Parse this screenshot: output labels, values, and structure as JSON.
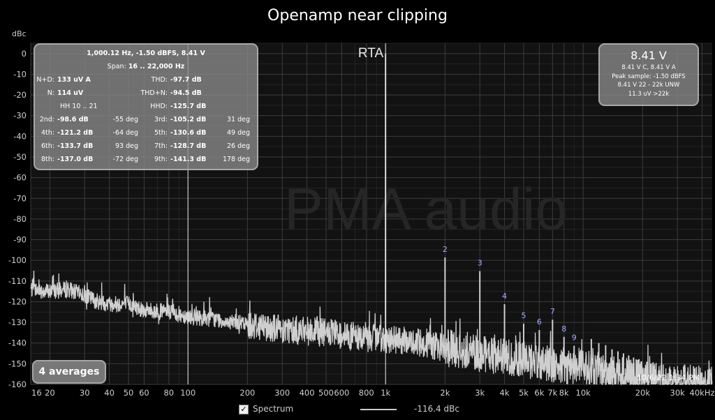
{
  "chart_data": {
    "type": "line",
    "title": "Openamp near clipping",
    "ylabel": "dBc",
    "xlabel": "",
    "x_scale": "log",
    "xlim": [
      16,
      45000
    ],
    "ylim": [
      -160,
      5
    ],
    "grid": true,
    "x_ticks": [
      16,
      20,
      30,
      40,
      50,
      60,
      80,
      100,
      200,
      300,
      400,
      500,
      600,
      800,
      1000,
      2000,
      3000,
      4000,
      5000,
      6000,
      7000,
      8000,
      10000,
      20000,
      30000,
      40000
    ],
    "x_tick_labels": [
      "16",
      "20",
      "30",
      "40",
      "50",
      "60",
      "80",
      "100",
      "200",
      "300",
      "400",
      "500",
      "600",
      "800",
      "1k",
      "2k",
      "3k",
      "4k",
      "5k",
      "6k",
      "7k",
      "8k",
      "10k",
      "20k",
      "30k",
      "40kHz"
    ],
    "y_ticks": [
      0,
      -10,
      -20,
      -30,
      -40,
      -50,
      -60,
      -70,
      -80,
      -90,
      -100,
      -110,
      -120,
      -130,
      -140,
      -150,
      -160
    ],
    "y_tick_labels": [
      "0",
      "-10",
      "-20",
      "-30",
      "-40",
      "-50",
      "-60",
      "-70",
      "-80",
      "-90",
      "-100",
      "-110",
      "-120",
      "-130",
      "-140",
      "-150",
      "-160"
    ],
    "series": [
      {
        "name": "Spectrum",
        "noise_floor": {
          "x": [
            16,
            20,
            25,
            30,
            35,
            40,
            50,
            60,
            80,
            100,
            150,
            200,
            300,
            500,
            700,
            900,
            1000,
            1500,
            2000,
            3000,
            5000,
            8000,
            10000,
            15000,
            20000,
            40000
          ],
          "y": [
            -114,
            -115,
            -114,
            -117,
            -120,
            -121,
            -121,
            -124,
            -125,
            -127,
            -129,
            -131,
            -133,
            -135,
            -137,
            -138,
            -138,
            -140,
            -142,
            -145,
            -148,
            -151,
            -152,
            -155,
            -157,
            -160
          ]
        },
        "peaks": {
          "x": [
            1000,
            2000,
            3000,
            4000,
            5000,
            6000,
            7000,
            8000,
            9000,
            11000,
            12000,
            13000,
            14000,
            15000,
            16000,
            17000,
            18000,
            19000,
            21000,
            22000
          ],
          "y": [
            0,
            -98.6,
            -105.2,
            -121.2,
            -130.6,
            -133.7,
            -128.7,
            -137.0,
            -141.3,
            -138,
            -140,
            -141,
            -143,
            -144,
            -145,
            -146,
            -147,
            -148,
            -149,
            -150
          ]
        }
      }
    ],
    "harmonic_labels": [
      {
        "label": "2",
        "x": 2000,
        "y": -98.6
      },
      {
        "label": "3",
        "x": 3000,
        "y": -105.2
      },
      {
        "label": "4",
        "x": 4000,
        "y": -121.2
      },
      {
        "label": "5",
        "x": 5000,
        "y": -130.6
      },
      {
        "label": "6",
        "x": 6000,
        "y": -133.7
      },
      {
        "label": "7",
        "x": 7000,
        "y": -128.7
      },
      {
        "label": "8",
        "x": 8000,
        "y": -137.0
      },
      {
        "label": "9",
        "x": 9000,
        "y": -141.3
      }
    ],
    "markers": [
      {
        "label": "RTA",
        "x": 1000
      },
      {
        "label": "",
        "x": 100
      }
    ],
    "watermark": "PMA audio"
  },
  "info_left": {
    "header": "1,000.12 Hz, -1.50 dBFS, 8.41 V",
    "span_label": "Span:",
    "span_value": "16 .. 22,000 Hz",
    "nd_label": "N+D:",
    "nd_value": "133 uV A",
    "thd_label": "THD:",
    "thd_value": "-97.7 dB",
    "n_label": "N:",
    "n_value": "114 uV",
    "thdn_label": "THD+N:",
    "thdn_value": "-94.5 dB",
    "hh_label": "HH 10 .. 21",
    "hhd_label": "HHD:",
    "hhd_value": "-125.7 dB",
    "harmonics": [
      {
        "label": "2nd:",
        "db": "-98.6 dB",
        "deg": "-55 deg"
      },
      {
        "label": "3rd:",
        "db": "-105.2 dB",
        "deg": "31 deg"
      },
      {
        "label": "4th:",
        "db": "-121.2 dB",
        "deg": "-64 deg"
      },
      {
        "label": "5th:",
        "db": "-130.6 dB",
        "deg": "49 deg"
      },
      {
        "label": "6th:",
        "db": "-133.7 dB",
        "deg": "93 deg"
      },
      {
        "label": "7th:",
        "db": "-128.7 dB",
        "deg": "26 deg"
      },
      {
        "label": "8th:",
        "db": "-137.0 dB",
        "deg": "-72 deg"
      },
      {
        "label": "9th:",
        "db": "-141.3 dB",
        "deg": "178 deg"
      }
    ]
  },
  "info_right": {
    "big": "8.41 V",
    "line1": "8.41 V C, 8.41 V A",
    "line2": "Peak sample: -1.50 dBFS",
    "line3": "8.41 V 22 - 22k UNW",
    "line4": "11.3 uV >22k"
  },
  "averages": "4 averages",
  "timestamp": "10/6/22 1:34 PM",
  "legend": {
    "checked": true,
    "label": "Spectrum",
    "value": "-116.4 dBc"
  },
  "colors": {
    "background": "#000000",
    "plot_background": "#121212",
    "grid_major": "#3c3c3c",
    "grid_minor": "#242424",
    "trace": "#cfcfcf",
    "harmonic_label": "#a8a8ff",
    "watermark": "#262626"
  }
}
